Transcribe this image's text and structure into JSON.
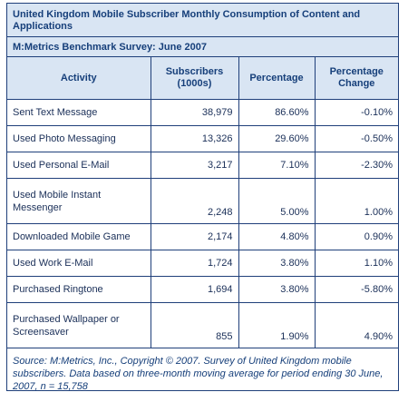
{
  "title": "United Kingdom Mobile Subscriber Monthly Consumption of Content and Applications",
  "subtitle": "M:Metrics Benchmark Survey: June 2007",
  "columns": [
    "Activity",
    "Subscribers (1000s)",
    "Percentage",
    "Percentage Change"
  ],
  "rows": [
    {
      "activity": "Sent Text Message",
      "subscribers": "38,979",
      "percentage": "86.60%",
      "change": "-0.10%"
    },
    {
      "activity": "Used Photo Messaging",
      "subscribers": "13,326",
      "percentage": "29.60%",
      "change": "-0.50%"
    },
    {
      "activity": "Used Personal E-Mail",
      "subscribers": "3,217",
      "percentage": "7.10%",
      "change": "-2.30%"
    },
    {
      "activity": "Used Mobile Instant Messenger",
      "subscribers": "2,248",
      "percentage": "5.00%",
      "change": "1.00%"
    },
    {
      "activity": "Downloaded Mobile Game",
      "subscribers": "2,174",
      "percentage": "4.80%",
      "change": "0.90%"
    },
    {
      "activity": "Used Work E-Mail",
      "subscribers": "1,724",
      "percentage": "3.80%",
      "change": "1.10%"
    },
    {
      "activity": "Purchased Ringtone",
      "subscribers": "1,694",
      "percentage": "3.80%",
      "change": "-5.80%"
    },
    {
      "activity": "Purchased Wallpaper or Screensaver",
      "subscribers": "855",
      "percentage": "1.90%",
      "change": "4.90%"
    }
  ],
  "footer": "Source: M:Metrics, Inc., Copyright © 2007. Survey of United Kingdom mobile subscribers. Data based on three-month moving average for period ending 30 June, 2007,   n = 15,758"
}
